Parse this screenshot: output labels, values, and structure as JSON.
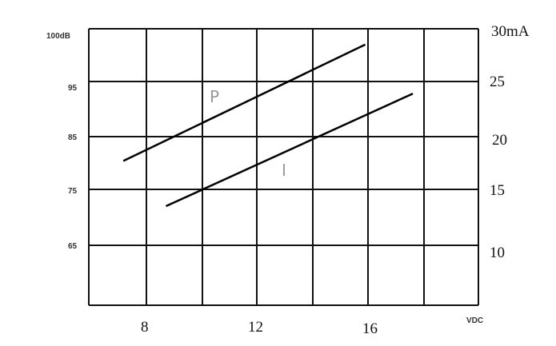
{
  "chart_data": {
    "type": "line",
    "xlabel": "VDC",
    "x_ticks": [
      "8",
      "12",
      "16"
    ],
    "xlim": [
      6,
      20
    ],
    "left_axis": {
      "ticks": [
        "100dB",
        "95",
        "85",
        "75",
        "65"
      ]
    },
    "right_axis": {
      "ticks": [
        "30mA",
        "25",
        "20",
        "15",
        "10"
      ],
      "ylim": [
        5,
        30
      ]
    },
    "grid": true,
    "series": [
      {
        "name": "P",
        "x": [
          7.2,
          15.9
        ],
        "y": [
          17.7,
          28.5
        ]
      },
      {
        "name": "I",
        "x": [
          8.7,
          17.6
        ],
        "y": [
          13.5,
          23.9
        ]
      }
    ],
    "colors": {
      "grid": "#111111",
      "line": "#000000",
      "label": "#999999"
    }
  }
}
